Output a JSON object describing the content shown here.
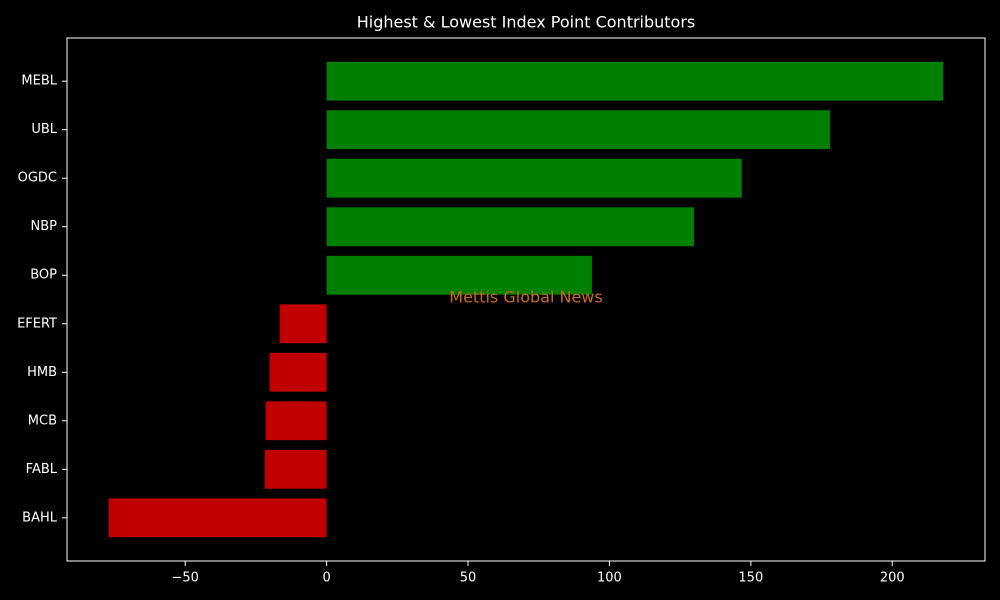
{
  "chart_data": {
    "type": "barh",
    "title": "Highest & Lowest Index Point Contributors",
    "annotation": "Mettis Global News",
    "annotation_color": "#c8691c",
    "categories": [
      "MEBL",
      "UBL",
      "OGDC",
      "NBP",
      "BOP",
      "EFERT",
      "HMB",
      "MCB",
      "FABL",
      "BAHL"
    ],
    "values": [
      218,
      178,
      146.8,
      129.9,
      93.8,
      -16.6,
      -20.2,
      -21.6,
      -21.9,
      -77.1
    ],
    "colors": [
      "#008000",
      "#008000",
      "#008000",
      "#008000",
      "#008000",
      "#c00000",
      "#c00000",
      "#c00000",
      "#c00000",
      "#c00000"
    ],
    "xlim": [
      -91.8,
      232.8
    ],
    "xticks": [
      {
        "value": -50,
        "label": "−50"
      },
      0,
      50,
      100,
      150,
      200
    ],
    "grid": false
  }
}
